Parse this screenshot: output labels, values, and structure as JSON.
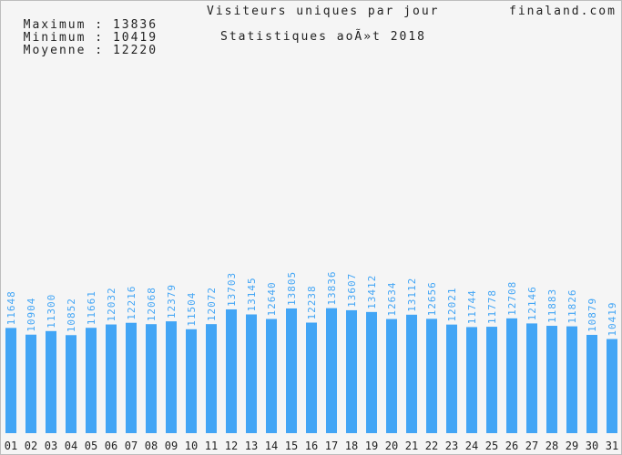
{
  "header": {
    "stats": [
      {
        "label": "Maximum",
        "value": "13836"
      },
      {
        "label": "Minimum",
        "value": "10419"
      },
      {
        "label": "Moyenne",
        "value": "12220"
      }
    ],
    "title": "Visiteurs uniques par jour",
    "subtitle": "Statistiques aoÃ»t 2018",
    "site": "finaland.com"
  },
  "chart_data": {
    "type": "bar",
    "title": "Visiteurs uniques par jour",
    "subtitle": "Statistiques aoÃ»t 2018",
    "categories": [
      "01",
      "02",
      "03",
      "04",
      "05",
      "06",
      "07",
      "08",
      "09",
      "10",
      "11",
      "12",
      "13",
      "14",
      "15",
      "16",
      "17",
      "18",
      "19",
      "20",
      "21",
      "22",
      "23",
      "24",
      "25",
      "26",
      "27",
      "28",
      "29",
      "30",
      "31"
    ],
    "values": [
      11648,
      10904,
      11300,
      10852,
      11661,
      12032,
      12216,
      12068,
      12379,
      11504,
      12072,
      13703,
      13145,
      12640,
      13805,
      12238,
      13836,
      13607,
      13412,
      12634,
      13112,
      12656,
      12021,
      11744,
      11778,
      12708,
      12146,
      11883,
      11826,
      10879,
      10419
    ],
    "ylim": [
      0,
      41500
    ],
    "grid": false,
    "colors": {
      "bar": "#42a5f5",
      "label": "#42a5f5",
      "axis_text": "#222222"
    }
  }
}
